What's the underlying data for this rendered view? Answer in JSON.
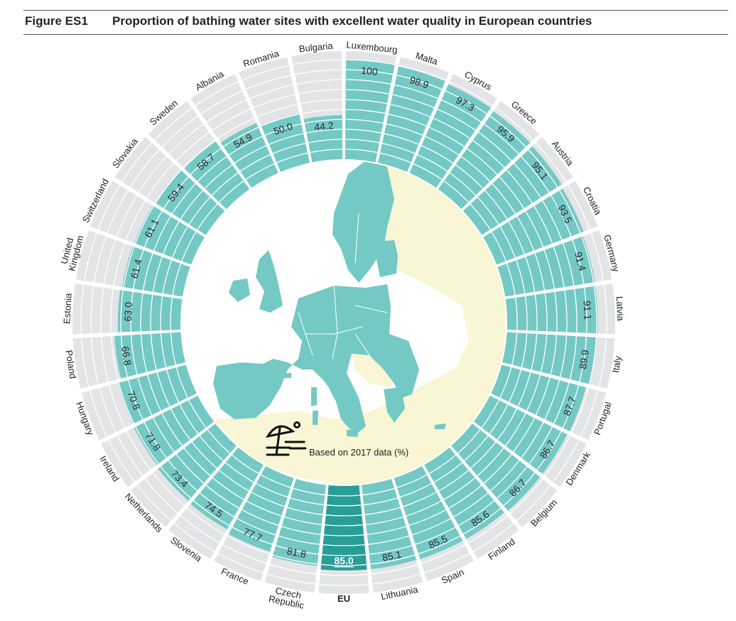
{
  "figure": {
    "label": "Figure ES1",
    "title": "Proportion of bathing water sites with excellent water quality in European countries"
  },
  "chart_data": {
    "type": "radial bar",
    "title": "Proportion of bathing water sites with excellent water quality in European countries",
    "note": "Based on 2017 data (%)",
    "order": "clockwise from top",
    "ylim": [
      0,
      100
    ],
    "categories": [
      "Luxembourg",
      "Malta",
      "Cyprus",
      "Greece",
      "Austria",
      "Croatia",
      "Germany",
      "Latvia",
      "Italy",
      "Portugal",
      "Denmark",
      "Belgium",
      "Finland",
      "Spain",
      "Lithuania",
      "EU",
      "Czech Republic",
      "France",
      "Slovenia",
      "Netherlands",
      "Ireland",
      "Hungary",
      "Poland",
      "Estonia",
      "United Kingdom",
      "Switzerland",
      "Slovakia",
      "Sweden",
      "Albania",
      "Romania",
      "Bulgaria"
    ],
    "labels": [
      [
        "Luxembourg"
      ],
      [
        "Malta"
      ],
      [
        "Cyprus"
      ],
      [
        "Greece"
      ],
      [
        "Austria"
      ],
      [
        "Croatia"
      ],
      [
        "Germany"
      ],
      [
        "Latvia"
      ],
      [
        "Italy"
      ],
      [
        "Portugal"
      ],
      [
        "Denmark"
      ],
      [
        "Belgium"
      ],
      [
        "Finland"
      ],
      [
        "Spain"
      ],
      [
        "Lithuania"
      ],
      [
        "EU"
      ],
      [
        "Czech",
        "Republic"
      ],
      [
        "France"
      ],
      [
        "Slovenia"
      ],
      [
        "Netherlands"
      ],
      [
        "Ireland"
      ],
      [
        "Hungary"
      ],
      [
        "Poland"
      ],
      [
        "Estonia"
      ],
      [
        "United",
        "Kingdom"
      ],
      [
        "Switzerland"
      ],
      [
        "Slovakia"
      ],
      [
        "Sweden"
      ],
      [
        "Albania"
      ],
      [
        "Romania"
      ],
      [
        "Bulgaria"
      ]
    ],
    "value_labels": [
      "100",
      "98.9",
      "97.3",
      "95.9",
      "95.1",
      "93.5",
      "91.4",
      "91.1",
      "89.9",
      "87.7",
      "86.7",
      "86.7",
      "85.6",
      "85.5",
      "85.1",
      "85.0",
      "81.8",
      "77.7",
      "74.5",
      "73.4",
      "71.8",
      "70.8",
      "66.8",
      "63.0",
      "61.4",
      "61.1",
      "59.4",
      "58.7",
      "54.9",
      "50.0",
      "44.2"
    ],
    "values": [
      100,
      98.9,
      97.3,
      95.9,
      95.1,
      93.5,
      91.4,
      91.1,
      89.9,
      87.7,
      86.7,
      86.7,
      85.6,
      85.5,
      85.1,
      85.0,
      81.8,
      77.7,
      74.5,
      73.4,
      71.8,
      70.8,
      66.8,
      63.0,
      61.4,
      61.1,
      59.4,
      58.7,
      54.9,
      50.0,
      44.2
    ],
    "highlight": "EU",
    "colors": {
      "bar": "#74c9c5",
      "bar_highlight": "#2a9d96",
      "track": "#e3e4e5",
      "land_eu": "#74c9c5",
      "land_other": "#f8f6d4",
      "sea": "#ffffff"
    },
    "icon": "beach-umbrella-icon"
  }
}
